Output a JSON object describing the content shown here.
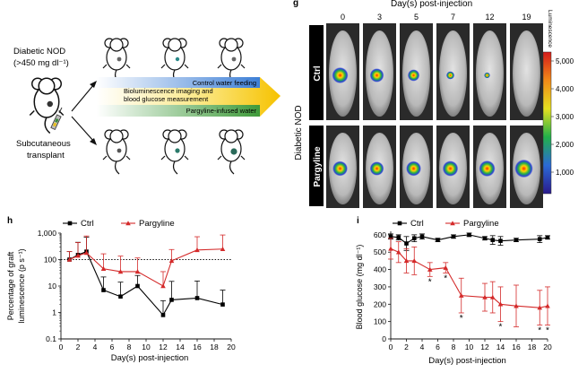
{
  "schematic": {
    "mouse_label_line1": "Diabetic NOD",
    "mouse_label_line2": "(>450 mg dl⁻¹)",
    "transplant_line1": "Subcutaneous",
    "transplant_line2": "transplant",
    "arrow_control": "Control water feeding",
    "arrow_main_line1": "Bioluminescence imaging and",
    "arrow_main_line2": "blood glucose measurement",
    "arrow_pargyline": "Pargyline-infused water"
  },
  "imaging": {
    "panel_letter": "g",
    "top_title": "Day(s) post-injection",
    "days": [
      "0",
      "3",
      "5",
      "7",
      "12",
      "19"
    ],
    "side_label": "Diabetic NOD",
    "row_labels": [
      "Ctrl",
      "Pargyline"
    ],
    "colorbar_title": "Luminescence",
    "colorbar_ticks": [
      "5,000",
      "4,000",
      "3,000",
      "2,000",
      "1,000"
    ],
    "ctrl_signal": [
      1.0,
      0.8,
      0.6,
      0.25,
      0.05,
      0.0
    ],
    "pargyline_signal": [
      0.9,
      0.8,
      0.9,
      0.95,
      1.0,
      1.2
    ]
  },
  "chart_data": [
    {
      "panel": "h",
      "type": "line",
      "xlabel": "Day(s) post-injection",
      "ylabel": "Percentage of graft luminescence (p s⁻¹)",
      "ylabel_line1": "Percentage of graft",
      "ylabel_line2": "luminescence (p s⁻¹)",
      "yscale": "log",
      "xlim": [
        0,
        20
      ],
      "ylim": [
        0.1,
        1000
      ],
      "xticks": [
        "0",
        "2",
        "4",
        "6",
        "8",
        "10",
        "12",
        "14",
        "16",
        "18",
        "20"
      ],
      "yticks": [
        "0.1",
        "1",
        "10",
        "100",
        "1,000"
      ],
      "reference_line": 100,
      "series": [
        {
          "name": "Ctrl",
          "color": "#000000",
          "marker": "square",
          "x": [
            1,
            2,
            3,
            5,
            7,
            9,
            12,
            13,
            16,
            19
          ],
          "y": [
            100,
            150,
            200,
            7,
            4,
            10,
            0.8,
            3,
            3.5,
            2
          ],
          "err_up": [
            100,
            300,
            500,
            15,
            10,
            15,
            2,
            12,
            12,
            5
          ]
        },
        {
          "name": "Pargyline",
          "color": "#d42a2a",
          "marker": "triangle",
          "x": [
            1,
            2,
            3,
            5,
            7,
            9,
            12,
            13,
            16,
            19
          ],
          "y": [
            100,
            140,
            180,
            45,
            35,
            35,
            10,
            90,
            230,
            250
          ],
          "err_up": [
            100,
            300,
            600,
            120,
            100,
            80,
            25,
            150,
            500,
            600
          ]
        }
      ]
    },
    {
      "panel": "i",
      "type": "line",
      "xlabel": "Day(s) post-injection",
      "ylabel": "Blood glucose (mg dl⁻¹)",
      "xlim": [
        0,
        20
      ],
      "ylim": [
        0,
        620
      ],
      "xticks": [
        "0",
        "2",
        "4",
        "6",
        "8",
        "10",
        "12",
        "14",
        "16",
        "18",
        "20"
      ],
      "yticks": [
        "0",
        "100",
        "200",
        "300",
        "400",
        "500",
        "600"
      ],
      "series": [
        {
          "name": "Ctrl",
          "color": "#000000",
          "marker": "square",
          "x": [
            0,
            1,
            2,
            3,
            4,
            6,
            8,
            10,
            12,
            13,
            14,
            16,
            19,
            20
          ],
          "y": [
            590,
            585,
            550,
            580,
            590,
            570,
            590,
            600,
            580,
            570,
            565,
            570,
            575,
            585
          ],
          "err": [
            15,
            15,
            40,
            20,
            15,
            10,
            10,
            10,
            10,
            25,
            25,
            10,
            20,
            10
          ]
        },
        {
          "name": "Pargyline",
          "color": "#d42a2a",
          "marker": "triangle",
          "x": [
            0,
            1,
            2,
            3,
            5,
            7,
            9,
            12,
            13,
            14,
            16,
            19,
            20
          ],
          "y": [
            520,
            500,
            450,
            450,
            400,
            410,
            250,
            240,
            240,
            200,
            190,
            180,
            190
          ],
          "err": [
            60,
            60,
            70,
            80,
            40,
            30,
            100,
            80,
            90,
            100,
            120,
            100,
            110
          ]
        }
      ],
      "significance": [
        {
          "x": 5,
          "mark": "*"
        },
        {
          "x": 7,
          "mark": "*"
        },
        {
          "x": 9,
          "mark": "*"
        },
        {
          "x": 14,
          "mark": "*"
        },
        {
          "x": 19,
          "mark": "*"
        },
        {
          "x": 20,
          "mark": "*"
        }
      ]
    }
  ]
}
